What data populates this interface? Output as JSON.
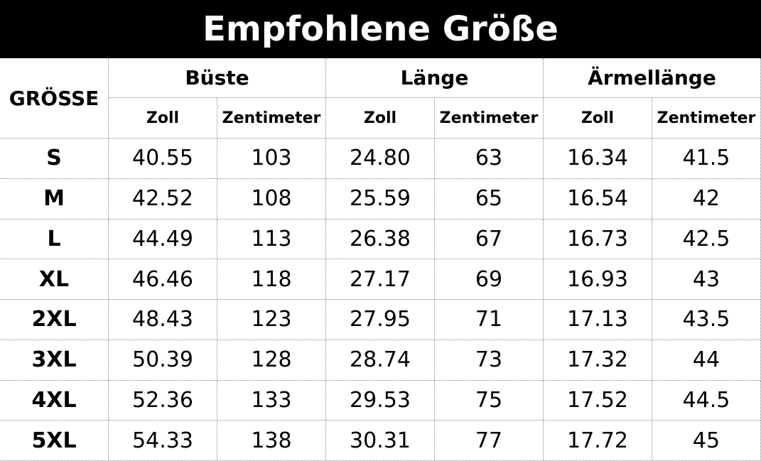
{
  "title": "Empfohlene Größe",
  "header": {
    "size": "GRÖSSE",
    "groups": [
      "Büste",
      "Länge",
      "Ärmellänge"
    ],
    "units": [
      "Zoll",
      "Zentimeter",
      "Zoll",
      "Zentimeter",
      "Zoll",
      "Zentimeter"
    ]
  },
  "table": {
    "rows": [
      [
        "S",
        "40.55",
        "103",
        "24.80",
        "63",
        "16.34",
        "41.5"
      ],
      [
        "M",
        "42.52",
        "108",
        "25.59",
        "65",
        "16.54",
        "42"
      ],
      [
        "L",
        "44.49",
        "113",
        "26.38",
        "67",
        "16.73",
        "42.5"
      ],
      [
        "XL",
        "46.46",
        "118",
        "27.17",
        "69",
        "16.93",
        "43"
      ],
      [
        "2XL",
        "48.43",
        "123",
        "27.95",
        "71",
        "17.13",
        "43.5"
      ],
      [
        "3XL",
        "50.39",
        "128",
        "28.74",
        "73",
        "17.32",
        "44"
      ],
      [
        "4XL",
        "52.36",
        "133",
        "29.53",
        "75",
        "17.52",
        "44.5"
      ],
      [
        "5XL",
        "54.33",
        "138",
        "30.31",
        "77",
        "17.72",
        "45"
      ]
    ]
  }
}
